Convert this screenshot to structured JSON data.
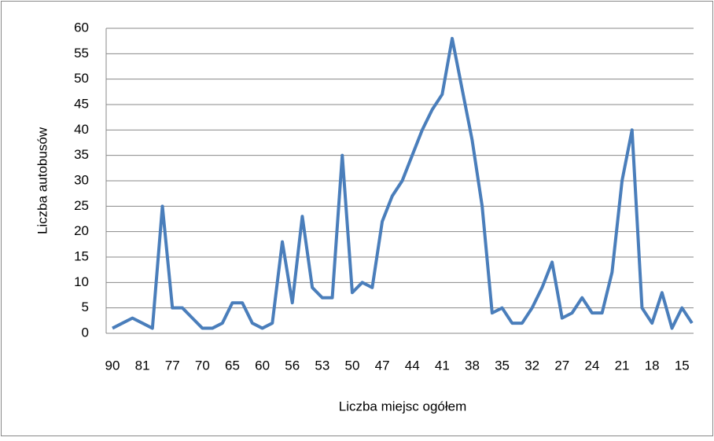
{
  "chart_data": {
    "type": "line",
    "xlabel": "Liczba miejsc ogółem",
    "ylabel": "Liczba autobusów",
    "categories": [
      "90",
      null,
      null,
      "81",
      null,
      null,
      "77",
      null,
      null,
      "70",
      null,
      null,
      "65",
      null,
      null,
      "60",
      null,
      null,
      "56",
      null,
      null,
      "53",
      null,
      null,
      "50",
      null,
      null,
      "47",
      null,
      null,
      "44",
      null,
      null,
      "41",
      null,
      null,
      "38",
      null,
      null,
      "35",
      null,
      null,
      "32",
      null,
      null,
      "27",
      null,
      null,
      "24",
      null,
      null,
      "21",
      null,
      null,
      "18",
      null,
      null,
      "15",
      null
    ],
    "series": [
      {
        "name": "Liczba autobusów",
        "color": "#4a7ebb",
        "values": [
          1,
          2,
          3,
          2,
          1,
          25,
          5,
          5,
          3,
          1,
          1,
          2,
          6,
          6,
          2,
          1,
          2,
          18,
          6,
          23,
          9,
          7,
          7,
          35,
          8,
          10,
          9,
          22,
          27,
          30,
          35,
          40,
          44,
          47,
          58,
          48,
          38,
          25,
          4,
          5,
          2,
          2,
          5,
          9,
          14,
          3,
          4,
          7,
          4,
          4,
          12,
          30,
          40,
          5,
          2,
          8,
          1,
          5,
          2
        ]
      }
    ],
    "ylim": [
      0,
      60
    ],
    "yticks": [
      0,
      5,
      10,
      15,
      20,
      25,
      30,
      35,
      40,
      45,
      50,
      55,
      60
    ],
    "grid": true
  }
}
